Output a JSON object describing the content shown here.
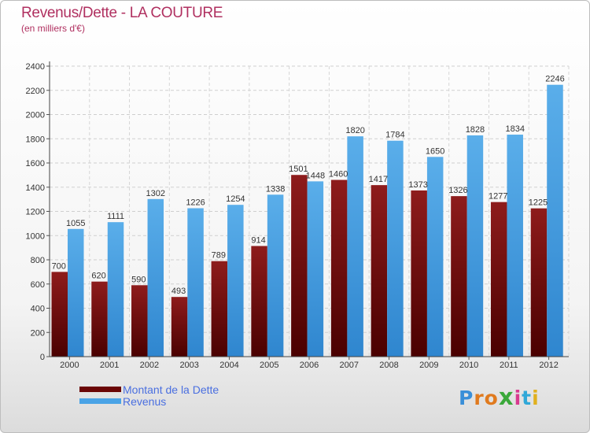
{
  "header": {
    "title": "Revenus/Dette - LA COUTURE",
    "subtitle": "(en milliers d'€)"
  },
  "logo": {
    "letters": [
      "P",
      "r",
      "o",
      "x",
      "i",
      "t",
      "i"
    ],
    "colors": [
      "#3a8fd8",
      "#e07a1e",
      "#e07a1e",
      "#3aa83a",
      "#d83a8f",
      "#2fa8d8",
      "#e0b01e"
    ]
  },
  "chart_data": {
    "type": "bar",
    "categories": [
      "2000",
      "2001",
      "2002",
      "2003",
      "2004",
      "2005",
      "2006",
      "2007",
      "2008",
      "2009",
      "2010",
      "2011",
      "2012"
    ],
    "series": [
      {
        "name": "Montant de la Dette",
        "color": "#7a0c0c",
        "values": [
          700,
          620,
          590,
          493,
          789,
          914,
          1501,
          1460,
          1417,
          1373,
          1326,
          1277,
          1225
        ]
      },
      {
        "name": "Revenus",
        "color": "#4aa3e6",
        "values": [
          1055,
          1111,
          1302,
          1226,
          1254,
          1338,
          1448,
          1820,
          1784,
          1650,
          1828,
          1834,
          2246
        ]
      }
    ],
    "ylim": [
      0,
      2400
    ],
    "yticks": [
      0,
      200,
      400,
      600,
      800,
      1000,
      1200,
      1400,
      1600,
      1800,
      2000,
      2200,
      2400
    ],
    "grid": true,
    "legend_position": "bottom-left",
    "xlabel": "",
    "ylabel": ""
  }
}
